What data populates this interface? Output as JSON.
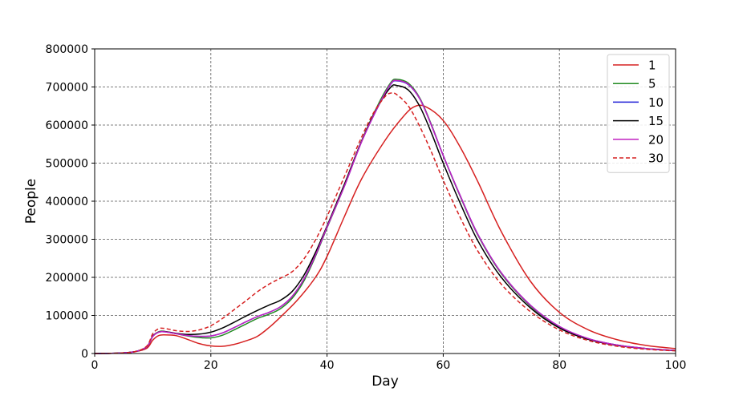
{
  "chart_data": {
    "type": "line",
    "xlabel": "Day",
    "ylabel": "People",
    "xlim": [
      0,
      100
    ],
    "ylim": [
      0,
      800000
    ],
    "xticks": [
      0,
      20,
      40,
      60,
      80,
      100
    ],
    "yticks": [
      0,
      100000,
      200000,
      300000,
      400000,
      500000,
      600000,
      700000,
      800000
    ],
    "grid": true,
    "legend_position": "top-right",
    "series": [
      {
        "name": "1",
        "color": "#d62020",
        "dash": "solid",
        "points": [
          [
            0,
            0
          ],
          [
            4,
            1000
          ],
          [
            7,
            5000
          ],
          [
            9,
            14000
          ],
          [
            10,
            35000
          ],
          [
            11,
            47000
          ],
          [
            12,
            49000
          ],
          [
            14,
            47000
          ],
          [
            16,
            37000
          ],
          [
            18,
            26000
          ],
          [
            20,
            20000
          ],
          [
            22,
            19000
          ],
          [
            24,
            24000
          ],
          [
            26,
            33000
          ],
          [
            28,
            45000
          ],
          [
            30,
            68000
          ],
          [
            32,
            96000
          ],
          [
            35,
            142000
          ],
          [
            38,
            200000
          ],
          [
            40,
            255000
          ],
          [
            43,
            360000
          ],
          [
            46,
            460000
          ],
          [
            50,
            560000
          ],
          [
            53,
            620000
          ],
          [
            55,
            648000
          ],
          [
            57,
            648000
          ],
          [
            60,
            612000
          ],
          [
            63,
            540000
          ],
          [
            66,
            450000
          ],
          [
            70,
            320000
          ],
          [
            75,
            190000
          ],
          [
            80,
            108000
          ],
          [
            85,
            62000
          ],
          [
            90,
            36000
          ],
          [
            95,
            21000
          ],
          [
            100,
            13000
          ]
        ]
      },
      {
        "name": "5",
        "color": "#228b22",
        "dash": "solid",
        "points": [
          [
            0,
            0
          ],
          [
            4,
            1000
          ],
          [
            7,
            5000
          ],
          [
            9,
            18000
          ],
          [
            10,
            45000
          ],
          [
            11,
            57000
          ],
          [
            12,
            58000
          ],
          [
            14,
            52000
          ],
          [
            16,
            46000
          ],
          [
            18,
            42000
          ],
          [
            20,
            41000
          ],
          [
            22,
            48000
          ],
          [
            24,
            62000
          ],
          [
            26,
            77000
          ],
          [
            28,
            92000
          ],
          [
            30,
            103000
          ],
          [
            32,
            118000
          ],
          [
            34,
            145000
          ],
          [
            36,
            190000
          ],
          [
            38,
            255000
          ],
          [
            40,
            330000
          ],
          [
            43,
            440000
          ],
          [
            46,
            560000
          ],
          [
            49,
            660000
          ],
          [
            51,
            712000
          ],
          [
            52,
            720000
          ],
          [
            54,
            710000
          ],
          [
            56,
            670000
          ],
          [
            58,
            600000
          ],
          [
            60,
            520000
          ],
          [
            63,
            410000
          ],
          [
            66,
            310000
          ],
          [
            70,
            210000
          ],
          [
            75,
            125000
          ],
          [
            80,
            70000
          ],
          [
            85,
            38000
          ],
          [
            90,
            22000
          ],
          [
            95,
            13000
          ],
          [
            100,
            8000
          ]
        ]
      },
      {
        "name": "10",
        "color": "#1f1fd6",
        "dash": "solid",
        "points": [
          [
            0,
            0
          ],
          [
            4,
            1000
          ],
          [
            7,
            5000
          ],
          [
            9,
            18000
          ],
          [
            10,
            45000
          ],
          [
            11,
            56000
          ],
          [
            12,
            57000
          ],
          [
            14,
            52000
          ],
          [
            16,
            47000
          ],
          [
            18,
            45000
          ],
          [
            20,
            46000
          ],
          [
            22,
            54000
          ],
          [
            24,
            68000
          ],
          [
            26,
            83000
          ],
          [
            28,
            97000
          ],
          [
            30,
            108000
          ],
          [
            32,
            123000
          ],
          [
            34,
            150000
          ],
          [
            36,
            195000
          ],
          [
            38,
            258000
          ],
          [
            40,
            332000
          ],
          [
            43,
            440000
          ],
          [
            46,
            558000
          ],
          [
            49,
            655000
          ],
          [
            51,
            708000
          ],
          [
            52,
            716000
          ],
          [
            54,
            706000
          ],
          [
            56,
            668000
          ],
          [
            58,
            598000
          ],
          [
            60,
            520000
          ],
          [
            63,
            412000
          ],
          [
            66,
            312000
          ],
          [
            70,
            212000
          ],
          [
            75,
            127000
          ],
          [
            80,
            71000
          ],
          [
            85,
            39000
          ],
          [
            90,
            22000
          ],
          [
            95,
            13000
          ],
          [
            100,
            8000
          ]
        ]
      },
      {
        "name": "15",
        "color": "#000000",
        "dash": "solid",
        "points": [
          [
            0,
            0
          ],
          [
            4,
            1000
          ],
          [
            7,
            5000
          ],
          [
            9,
            18000
          ],
          [
            10,
            46000
          ],
          [
            11,
            56000
          ],
          [
            12,
            58000
          ],
          [
            14,
            53000
          ],
          [
            16,
            50000
          ],
          [
            18,
            51000
          ],
          [
            20,
            56000
          ],
          [
            22,
            67000
          ],
          [
            24,
            82000
          ],
          [
            26,
            98000
          ],
          [
            28,
            113000
          ],
          [
            30,
            127000
          ],
          [
            32,
            140000
          ],
          [
            34,
            163000
          ],
          [
            36,
            205000
          ],
          [
            38,
            265000
          ],
          [
            40,
            335000
          ],
          [
            43,
            445000
          ],
          [
            46,
            560000
          ],
          [
            49,
            655000
          ],
          [
            51,
            700000
          ],
          [
            52,
            704000
          ],
          [
            54,
            692000
          ],
          [
            56,
            648000
          ],
          [
            58,
            578000
          ],
          [
            60,
            500000
          ],
          [
            63,
            392000
          ],
          [
            66,
            295000
          ],
          [
            70,
            200000
          ],
          [
            75,
            120000
          ],
          [
            80,
            67000
          ],
          [
            85,
            37000
          ],
          [
            90,
            21000
          ],
          [
            95,
            12500
          ],
          [
            100,
            7500
          ]
        ]
      },
      {
        "name": "20",
        "color": "#c020c0",
        "dash": "solid",
        "points": [
          [
            0,
            0
          ],
          [
            4,
            1000
          ],
          [
            7,
            5000
          ],
          [
            9,
            18000
          ],
          [
            10,
            45000
          ],
          [
            11,
            56000
          ],
          [
            12,
            57000
          ],
          [
            14,
            52000
          ],
          [
            16,
            47000
          ],
          [
            18,
            45000
          ],
          [
            20,
            46000
          ],
          [
            22,
            54000
          ],
          [
            24,
            68000
          ],
          [
            26,
            83000
          ],
          [
            28,
            97000
          ],
          [
            30,
            108000
          ],
          [
            32,
            123000
          ],
          [
            34,
            150000
          ],
          [
            36,
            195000
          ],
          [
            38,
            258000
          ],
          [
            40,
            332000
          ],
          [
            43,
            440000
          ],
          [
            46,
            558000
          ],
          [
            49,
            655000
          ],
          [
            51,
            709000
          ],
          [
            52,
            717000
          ],
          [
            54,
            707000
          ],
          [
            56,
            668000
          ],
          [
            58,
            598000
          ],
          [
            60,
            520000
          ],
          [
            63,
            412000
          ],
          [
            66,
            312000
          ],
          [
            70,
            212000
          ],
          [
            75,
            127000
          ],
          [
            80,
            71000
          ],
          [
            85,
            39000
          ],
          [
            90,
            22000
          ],
          [
            95,
            13000
          ],
          [
            100,
            8000
          ]
        ]
      },
      {
        "name": "30",
        "color": "#d62020",
        "dash": "dashed",
        "points": [
          [
            0,
            0
          ],
          [
            4,
            1000
          ],
          [
            7,
            5000
          ],
          [
            9,
            20000
          ],
          [
            10,
            52000
          ],
          [
            11,
            65000
          ],
          [
            12,
            66000
          ],
          [
            14,
            60000
          ],
          [
            16,
            58000
          ],
          [
            18,
            62000
          ],
          [
            20,
            73000
          ],
          [
            22,
            92000
          ],
          [
            24,
            115000
          ],
          [
            26,
            138000
          ],
          [
            28,
            162000
          ],
          [
            30,
            182000
          ],
          [
            32,
            198000
          ],
          [
            34,
            215000
          ],
          [
            36,
            248000
          ],
          [
            38,
            298000
          ],
          [
            40,
            360000
          ],
          [
            43,
            465000
          ],
          [
            46,
            570000
          ],
          [
            48,
            632000
          ],
          [
            50,
            675000
          ],
          [
            51,
            684000
          ],
          [
            52,
            680000
          ],
          [
            54,
            650000
          ],
          [
            56,
            595000
          ],
          [
            58,
            528000
          ],
          [
            60,
            455000
          ],
          [
            63,
            355000
          ],
          [
            66,
            268000
          ],
          [
            70,
            182000
          ],
          [
            75,
            110000
          ],
          [
            80,
            62000
          ],
          [
            85,
            34000
          ],
          [
            90,
            19000
          ],
          [
            95,
            11000
          ],
          [
            100,
            7000
          ]
        ]
      }
    ]
  }
}
